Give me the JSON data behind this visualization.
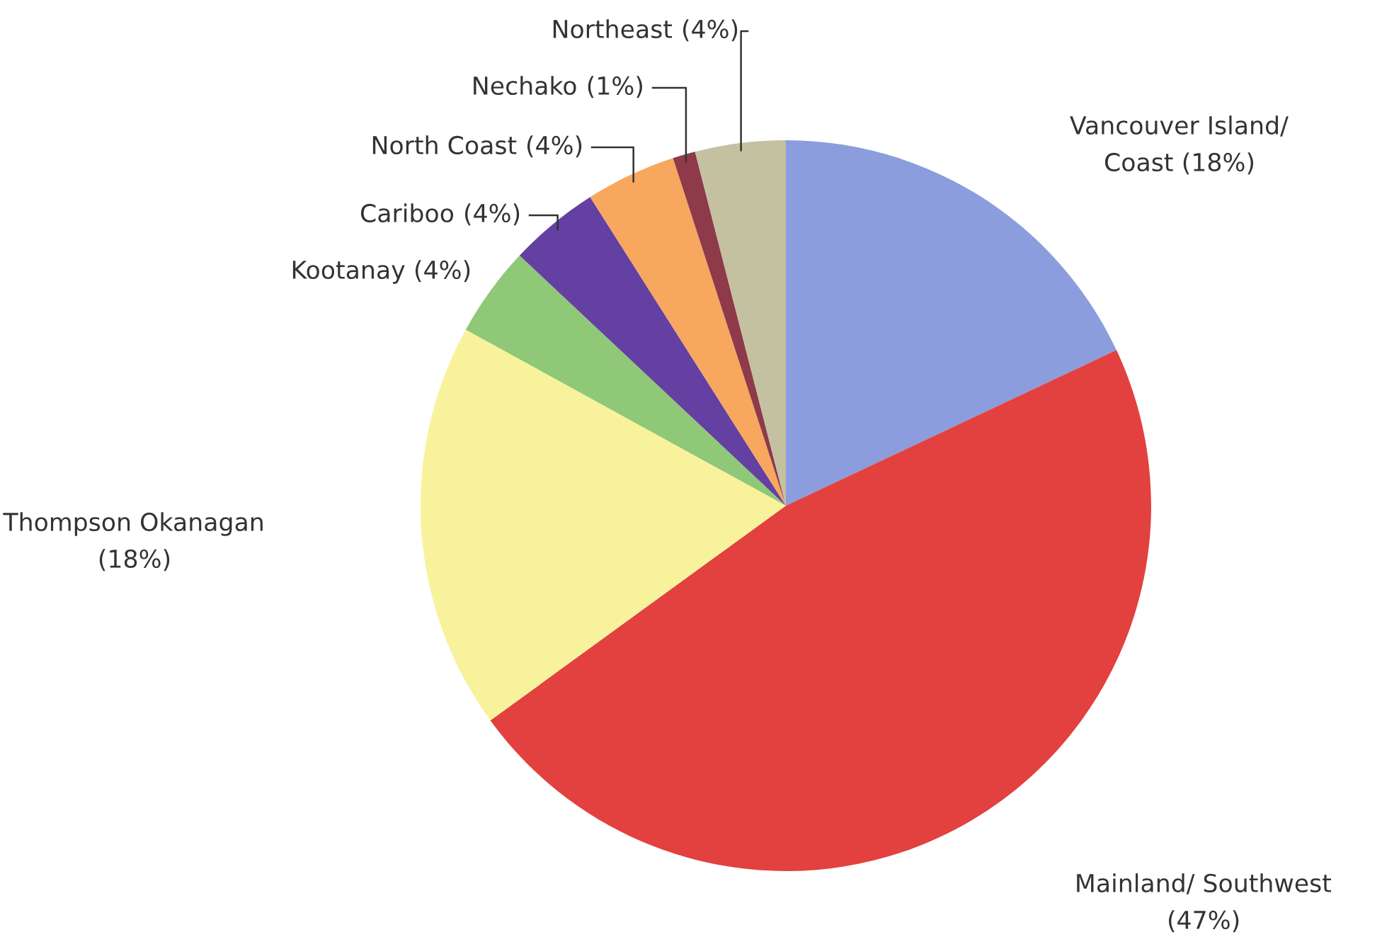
{
  "chart_data": {
    "type": "pie",
    "categories": [
      "Vancouver Island/\nCoast",
      "Mainland/ Southwest",
      "Thompson Okanagan",
      "Kootanay",
      "Cariboo",
      "North Coast",
      "Nechako",
      "Northeast"
    ],
    "values": [
      18,
      47,
      18,
      4,
      4,
      4,
      1,
      4
    ],
    "value_labels": [
      "(18%)",
      "(47%)",
      "(18%)",
      "(4%)",
      "(4%)",
      "(4%)",
      "(1%)",
      "(4%)"
    ],
    "colors": [
      "#8b9ddc",
      "#e2413f",
      "#f9f29c",
      "#8fc877",
      "#6340a2",
      "#f7a75e",
      "#8e3a4a",
      "#c3c1a0"
    ],
    "legend": false
  }
}
